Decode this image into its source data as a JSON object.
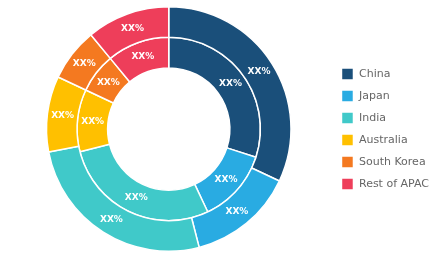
{
  "chart_data": {
    "type": "doughnut",
    "categories": [
      "China",
      "Japan",
      "India",
      "Australia",
      "South Korea",
      "Rest of APAC"
    ],
    "colors": [
      "#1a4f7a",
      "#29abe2",
      "#40c9c9",
      "#ffc000",
      "#f47920",
      "#ee3e5a"
    ],
    "series": [
      {
        "values": [
          32,
          14,
          26,
          10,
          7,
          11
        ],
        "value_labels": [
          "XX%",
          "XX%",
          "XX%",
          "XX%",
          "XX%",
          "XX%"
        ]
      },
      {
        "values": [
          30,
          13,
          28,
          11,
          7,
          11
        ],
        "value_labels": [
          "XX%",
          "XX%",
          "XX%",
          "XX%",
          "XX%",
          "XX%"
        ]
      }
    ],
    "data_labels": true,
    "legend": "right"
  }
}
